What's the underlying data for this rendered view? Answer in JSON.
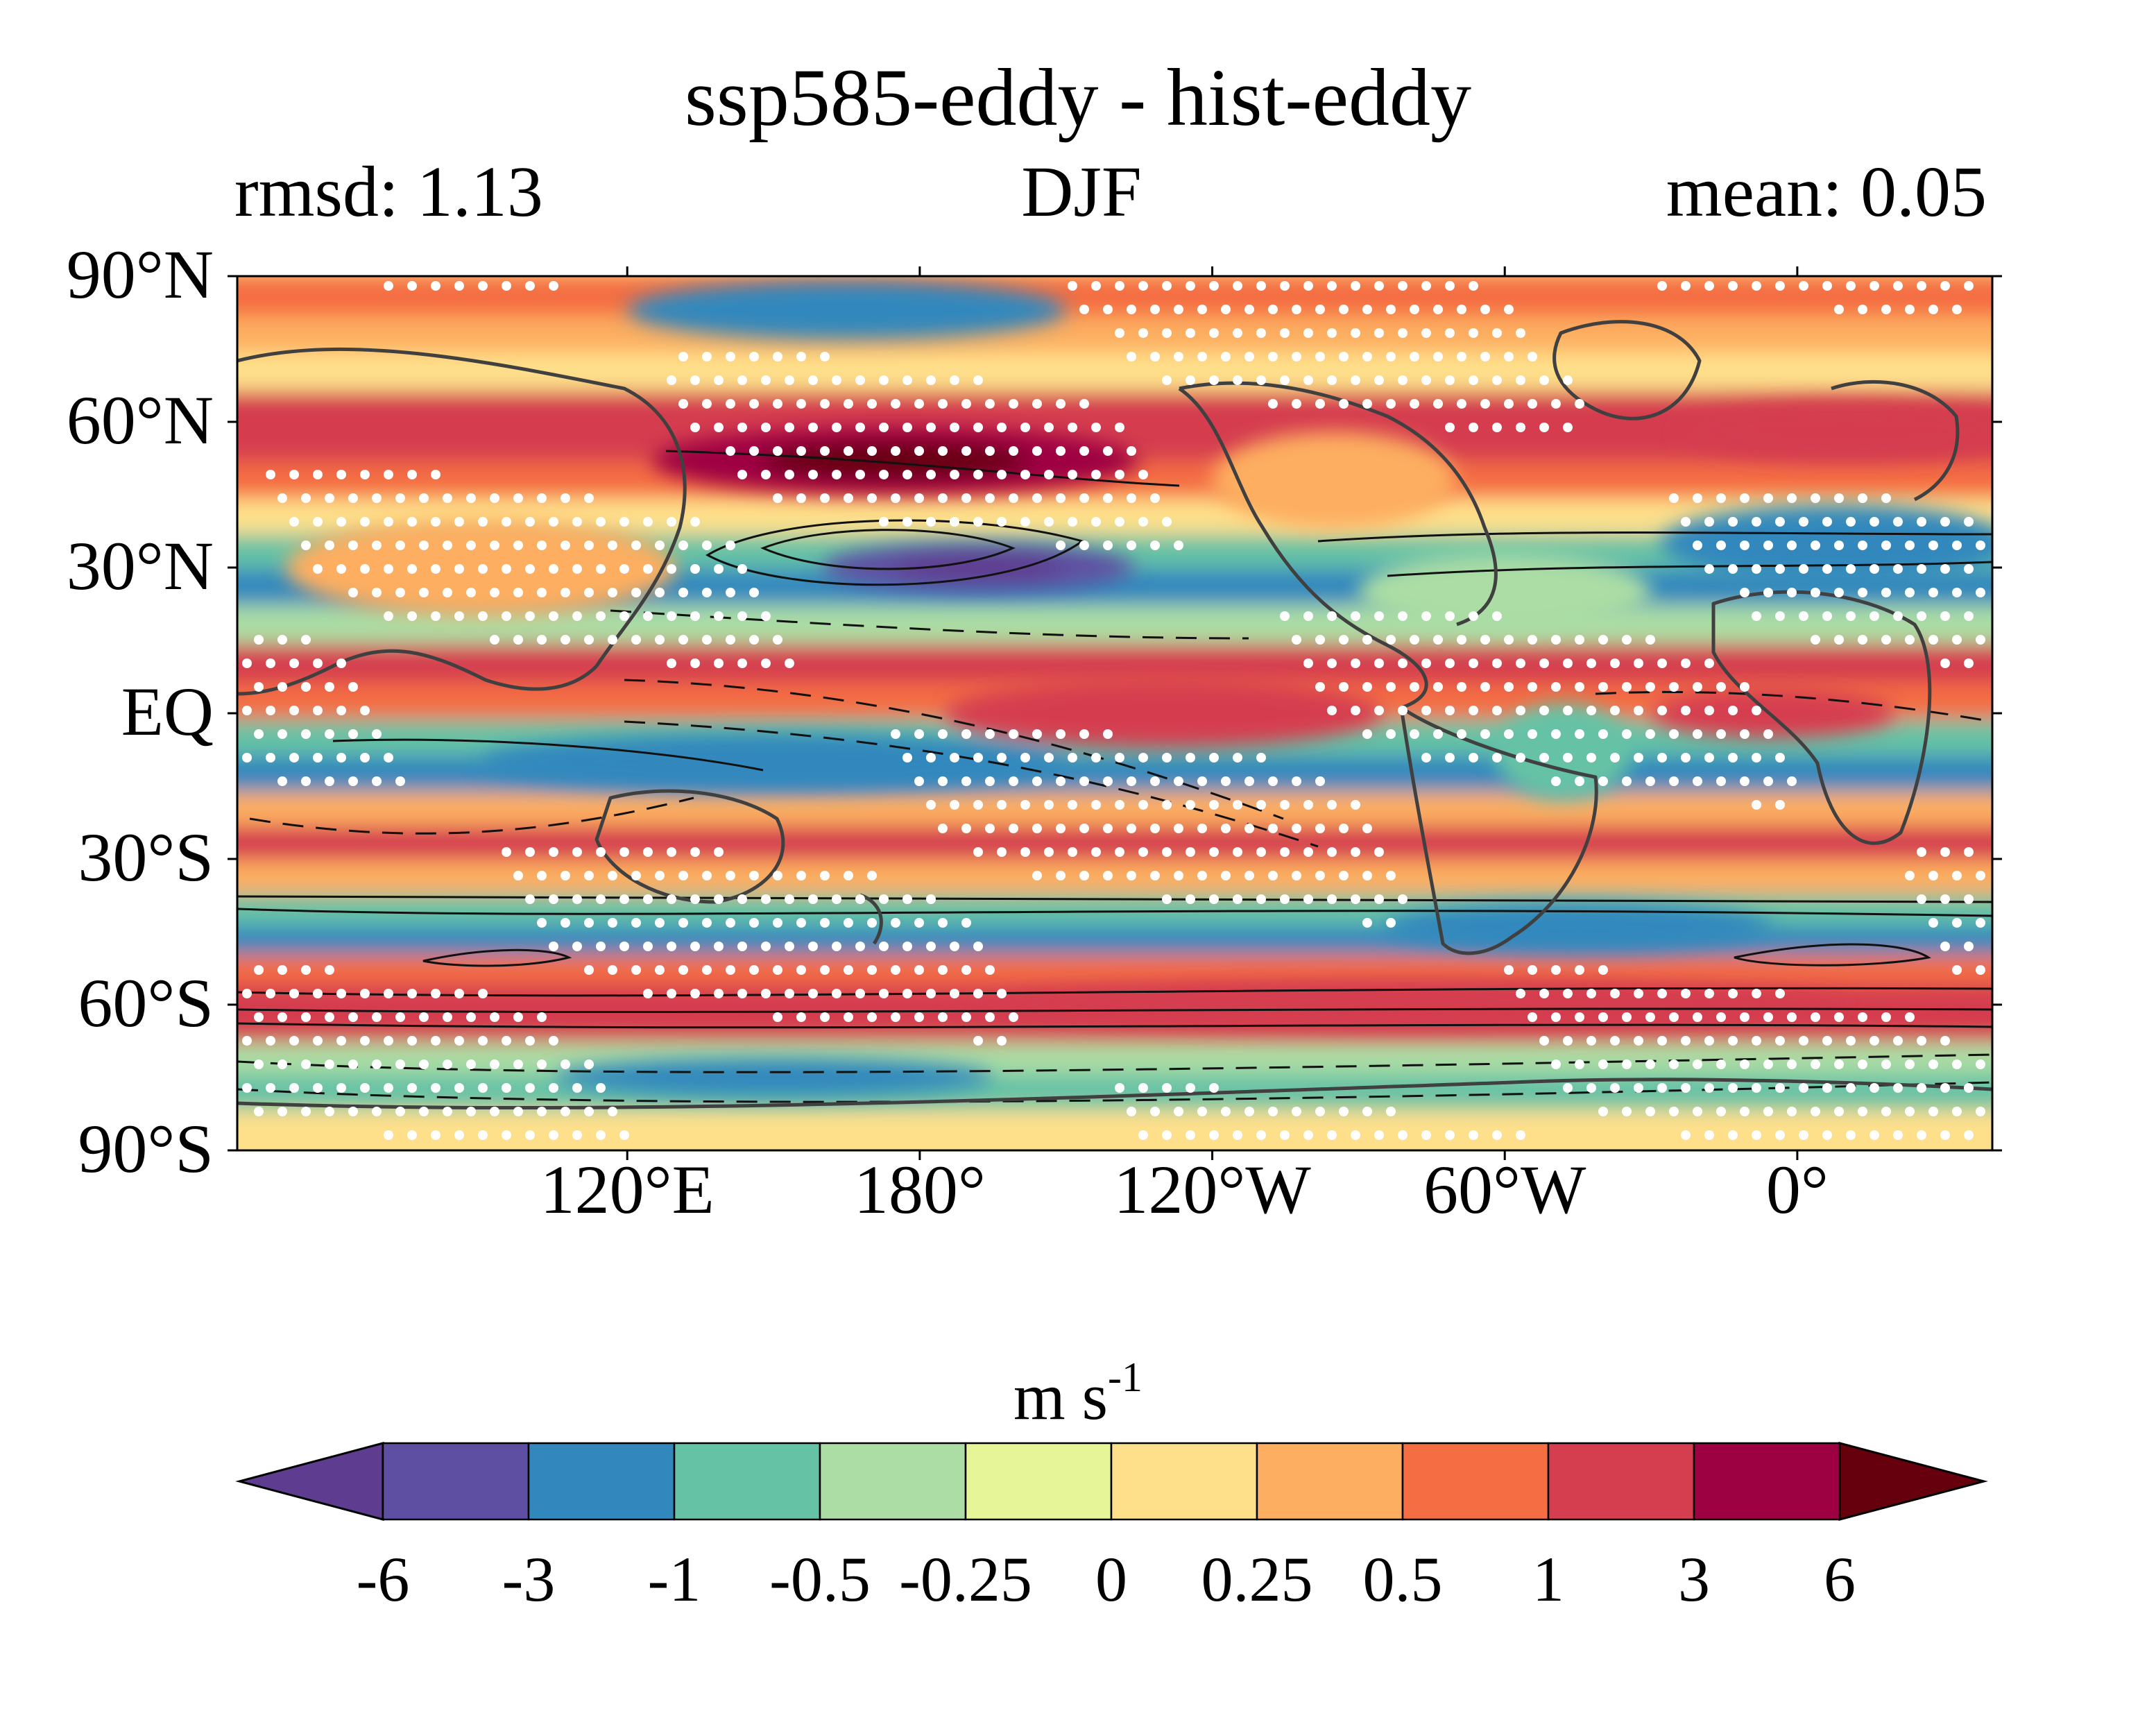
{
  "figure": {
    "title": "ssp585-eddy - hist-eddy",
    "left_stat": "rmsd: 1.13",
    "season": "DJF",
    "right_stat": "mean: 0.05"
  },
  "axes": {
    "lat_ticks": [
      {
        "lat": 90,
        "label": "90°N"
      },
      {
        "lat": 60,
        "label": "60°N"
      },
      {
        "lat": 30,
        "label": "30°N"
      },
      {
        "lat": 0,
        "label": "EQ"
      },
      {
        "lat": -30,
        "label": "30°S"
      },
      {
        "lat": -60,
        "label": "60°S"
      },
      {
        "lat": -90,
        "label": "90°S"
      }
    ],
    "lon_ticks": [
      {
        "lon": 120,
        "label": "120°E"
      },
      {
        "lon": 180,
        "label": "180°"
      },
      {
        "lon": 240,
        "label": "120°W"
      },
      {
        "lon": 300,
        "label": "60°W"
      },
      {
        "lon": 360,
        "label": "0°"
      }
    ],
    "lon_range": [
      40,
      400
    ],
    "lat_range": [
      -90,
      90
    ]
  },
  "colorbar": {
    "units_main": "m s",
    "units_exp": "-1",
    "labels": [
      "-6",
      "-3",
      "-1",
      "-0.5",
      "-0.25",
      "0",
      "0.25",
      "0.5",
      "1",
      "3",
      "6"
    ],
    "colors": [
      "#5e4fa2",
      "#3288bd",
      "#66c2a5",
      "#abdda4",
      "#e6f598",
      "#fee08b",
      "#fdae61",
      "#f46d43",
      "#d53e4f",
      "#9e0142"
    ],
    "extend_low": "#5e3c8f",
    "extend_high": "#67000d"
  },
  "map_bands": [
    {
      "lat": 85,
      "value": 0.6
    },
    {
      "lat": 78,
      "value": 0.4
    },
    {
      "lat": 70,
      "value": 0.2
    },
    {
      "lat": 62,
      "value": 1.2
    },
    {
      "lat": 55,
      "value": 1.5
    },
    {
      "lat": 48,
      "value": 0.8
    },
    {
      "lat": 40,
      "value": 0.1
    },
    {
      "lat": 33,
      "value": -0.8
    },
    {
      "lat": 26,
      "value": -1.5
    },
    {
      "lat": 18,
      "value": -0.3
    },
    {
      "lat": 10,
      "value": 1.2
    },
    {
      "lat": 2,
      "value": 0.6
    },
    {
      "lat": -5,
      "value": -0.6
    },
    {
      "lat": -13,
      "value": -1.3
    },
    {
      "lat": -20,
      "value": 0.3
    },
    {
      "lat": -27,
      "value": 1.0
    },
    {
      "lat": -34,
      "value": 0.4
    },
    {
      "lat": -41,
      "value": -0.6
    },
    {
      "lat": -47,
      "value": -1.2
    },
    {
      "lat": -53,
      "value": 0.8
    },
    {
      "lat": -59,
      "value": 1.8
    },
    {
      "lat": -65,
      "value": 1.1
    },
    {
      "lat": -71,
      "value": -0.4
    },
    {
      "lat": -78,
      "value": -0.7
    },
    {
      "lat": -86,
      "value": 0.1
    }
  ],
  "anomaly_blobs": [
    {
      "lon": 175,
      "lat": 52,
      "rlon": 50,
      "rlat": 7,
      "value": 4.0
    },
    {
      "lon": 192,
      "lat": 30,
      "rlon": 32,
      "rlat": 5,
      "value": -4.0
    },
    {
      "lon": 165,
      "lat": 83,
      "rlon": 45,
      "rlat": 6,
      "value": -1.5
    },
    {
      "lon": 368,
      "lat": 35,
      "rlon": 36,
      "rlat": 8,
      "value": -1.5
    },
    {
      "lon": 150,
      "lat": -10,
      "rlon": 60,
      "rlat": 6,
      "value": -1.5
    },
    {
      "lon": 230,
      "lat": 0,
      "rlon": 45,
      "rlat": 7,
      "value": 1.5
    },
    {
      "lon": 315,
      "lat": -44,
      "rlon": 40,
      "rlat": 5,
      "value": -1.5
    },
    {
      "lon": 280,
      "lat": -60,
      "rlon": 90,
      "rlat": 5,
      "value": 2.2
    },
    {
      "lon": 370,
      "lat": 58,
      "rlon": 35,
      "rlat": 6,
      "value": 1.8
    },
    {
      "lon": 312,
      "lat": -8,
      "rlon": 14,
      "rlat": 10,
      "value": -0.6
    },
    {
      "lon": 265,
      "lat": 48,
      "rlon": 25,
      "rlat": 10,
      "value": 0.4
    },
    {
      "lon": 300,
      "lat": 25,
      "rlon": 30,
      "rlat": 8,
      "value": -0.3
    },
    {
      "lon": 90,
      "lat": 30,
      "rlon": 40,
      "rlat": 10,
      "value": 0.3
    },
    {
      "lon": 150,
      "lat": -75,
      "rlon": 45,
      "rlat": 4,
      "value": -1.3
    },
    {
      "lon": 355,
      "lat": 0,
      "rlon": 25,
      "rlat": 5,
      "value": 1.5
    }
  ]
}
